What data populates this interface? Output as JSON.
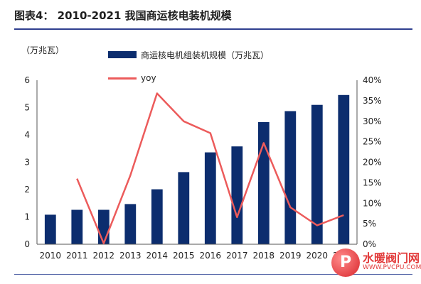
{
  "figure": {
    "title": "图表4： 2010-2021 我国商运核电装机规模"
  },
  "chart_data": {
    "type": "bar",
    "unit_label": "（万兆瓦）",
    "categories": [
      "2010",
      "2011",
      "2012",
      "2013",
      "2014",
      "2015",
      "2016",
      "2017",
      "2018",
      "2019",
      "2020",
      "2021"
    ],
    "series": [
      {
        "name": "商运核电机组装机规模（万兆瓦）",
        "type": "bar",
        "axis": "left",
        "color": "#0c2d6e",
        "values": [
          1.08,
          1.26,
          1.26,
          1.47,
          2.01,
          2.64,
          3.36,
          3.58,
          4.47,
          4.87,
          5.1,
          5.46
        ]
      },
      {
        "name": "yoy",
        "type": "line",
        "axis": "right",
        "color": "#ec5b5b",
        "values": [
          null,
          16.0,
          0.2,
          16.8,
          36.8,
          30.0,
          27.1,
          6.6,
          24.7,
          9.0,
          4.6,
          7.1
        ]
      }
    ],
    "y_left": {
      "min": 0,
      "max": 6,
      "ticks": [
        0,
        1,
        2,
        3,
        4,
        5,
        6
      ],
      "tick_labels": [
        "0",
        "1",
        "2",
        "3",
        "4",
        "5",
        "6"
      ]
    },
    "y_right": {
      "min": 0,
      "max": 40,
      "ticks": [
        0,
        5,
        10,
        15,
        20,
        25,
        30,
        35,
        40
      ],
      "tick_labels": [
        "0%",
        "5%",
        "10%",
        "15%",
        "20%",
        "25%",
        "30%",
        "35%",
        "40%"
      ]
    },
    "grid": false,
    "legend_position": "top-center"
  },
  "watermark": {
    "badge": "P",
    "name": "水暖阀门网",
    "url": "WWW.PVCPU.COM"
  }
}
